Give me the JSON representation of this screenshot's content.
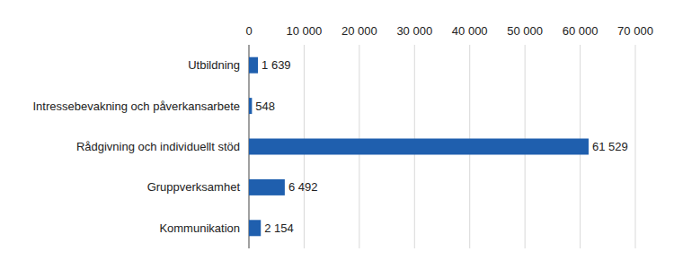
{
  "chart_data": {
    "type": "bar",
    "orientation": "horizontal",
    "categories": [
      "Utbildning",
      "Intressebevakning och påverkansarbete",
      "Rådgivning och individuellt stöd",
      "Gruppverksamhet",
      "Kommunikation"
    ],
    "values": [
      1639,
      548,
      61529,
      6492,
      2154
    ],
    "value_labels": [
      "1 639",
      "548",
      "61 529",
      "6 492",
      "2 154"
    ],
    "data_labels": true,
    "color": "#1f5fae",
    "xlim": [
      0,
      70000
    ],
    "xticks": [
      0,
      {
        "value": 10000,
        "label": "10 000"
      },
      {
        "value": 20000,
        "label": "20 000"
      },
      {
        "value": 30000,
        "label": "30 000"
      },
      {
        "value": 40000,
        "label": "40 000"
      },
      {
        "value": 50000,
        "label": "50 000"
      },
      {
        "value": 60000,
        "label": "60 000"
      },
      {
        "value": 70000,
        "label": "70 000"
      }
    ],
    "grid": true
  }
}
